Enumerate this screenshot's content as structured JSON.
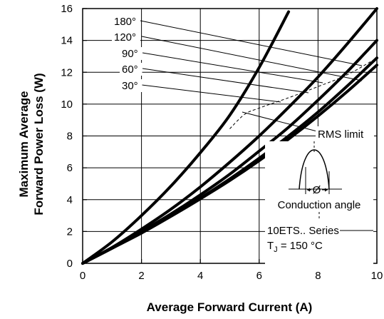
{
  "chart_data": {
    "type": "line",
    "xlabel": "Average Forward Current (A)",
    "ylabel_line1": "Maximum Average",
    "ylabel_line2": "Forward Power Loss (W)",
    "xlim": [
      0,
      10
    ],
    "ylim": [
      0,
      16
    ],
    "xticks": [
      0,
      2,
      4,
      6,
      8,
      10
    ],
    "yticks": [
      0,
      2,
      4,
      6,
      8,
      10,
      12,
      14,
      16
    ],
    "grid": true,
    "series": [
      {
        "name": "180°",
        "x": [
          0,
          1,
          2,
          3,
          4,
          5,
          6,
          7
        ],
        "y": [
          0,
          1.35,
          3.0,
          4.85,
          6.95,
          9.3,
          12.3,
          15.8
        ]
      },
      {
        "name": "120°",
        "x": [
          0,
          1,
          2,
          3,
          4,
          5,
          6,
          7,
          8,
          9,
          10
        ],
        "y": [
          0,
          1.0,
          2.15,
          3.4,
          4.8,
          6.35,
          8.0,
          9.8,
          11.7,
          13.8,
          16.0
        ]
      },
      {
        "name": "90°",
        "x": [
          0,
          1,
          2,
          3,
          4,
          5,
          6,
          7,
          8,
          9,
          10
        ],
        "y": [
          0,
          0.95,
          2.0,
          3.1,
          4.3,
          5.6,
          7.05,
          8.55,
          10.25,
          12.05,
          14.0
        ]
      },
      {
        "name": "60°",
        "x": [
          0,
          1,
          2,
          3,
          4,
          5,
          6,
          7,
          8,
          9,
          10
        ],
        "y": [
          0,
          0.95,
          1.95,
          3.0,
          4.1,
          5.3,
          6.6,
          8.0,
          9.5,
          11.15,
          12.9
        ]
      },
      {
        "name": "30°",
        "x": [
          0,
          1,
          2,
          3,
          4,
          5,
          6,
          7,
          8,
          9,
          10
        ],
        "y": [
          0,
          0.95,
          1.9,
          2.95,
          4.05,
          5.2,
          6.45,
          7.8,
          9.25,
          10.8,
          12.45
        ]
      }
    ],
    "rms_limit": {
      "label": "RMS limit",
      "x": [
        5.0,
        5.5,
        6.0,
        7.0,
        8.0,
        9.0,
        10.0
      ],
      "y": [
        8.45,
        9.35,
        9.75,
        10.4,
        11.1,
        11.85,
        12.9
      ]
    },
    "annotations": {
      "conduction_angle_symbol": "Ø",
      "conduction_angle_label": "Conduction angle",
      "series_text": "10ETS.. Series",
      "tj_prefix": "T",
      "tj_sub": "J",
      "tj_suffix": " = 150 °C"
    }
  }
}
